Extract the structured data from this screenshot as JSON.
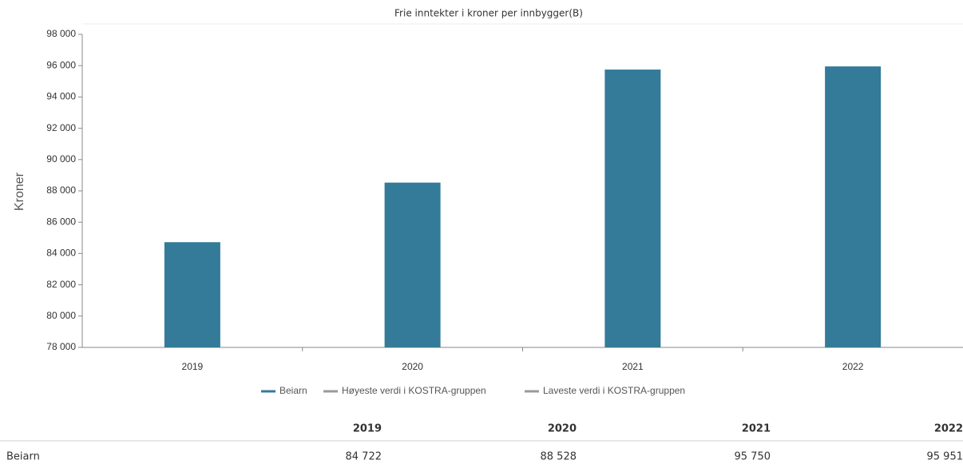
{
  "chart_data": {
    "type": "bar",
    "title": "Frie inntekter i kroner per innbygger(B)",
    "y_label": "Kroner",
    "categories": [
      "2019",
      "2020",
      "2021",
      "2022"
    ],
    "series": [
      {
        "name": "Beiarn",
        "color": "#347a99",
        "values": [
          84722,
          88528,
          95750,
          95951
        ]
      },
      {
        "name": "Høyeste verdi i KOSTRA-gruppen",
        "color": "#999999",
        "values": [
          null,
          null,
          null,
          null
        ]
      },
      {
        "name": "Laveste verdi i KOSTRA-gruppen",
        "color": "#999999",
        "values": [
          null,
          null,
          null,
          null
        ]
      }
    ],
    "ylim": [
      78000,
      98000
    ],
    "yticks": [
      {
        "value": 78000,
        "label": "78 000"
      },
      {
        "value": 80000,
        "label": "80 000"
      },
      {
        "value": 82000,
        "label": "82 000"
      },
      {
        "value": 84000,
        "label": "84 000"
      },
      {
        "value": 86000,
        "label": "86 000"
      },
      {
        "value": 88000,
        "label": "88 000"
      },
      {
        "value": 90000,
        "label": "90 000"
      },
      {
        "value": 92000,
        "label": "92 000"
      },
      {
        "value": 94000,
        "label": "94 000"
      },
      {
        "value": 96000,
        "label": "96 000"
      },
      {
        "value": 98000,
        "label": "98 000"
      }
    ],
    "grid": false,
    "legend": "bottom"
  },
  "table": {
    "columns": [
      "2019",
      "2020",
      "2021",
      "2022"
    ],
    "rows": [
      [
        "Beiarn",
        "84 722",
        "88 528",
        "95 750",
        "95 951"
      ]
    ]
  }
}
